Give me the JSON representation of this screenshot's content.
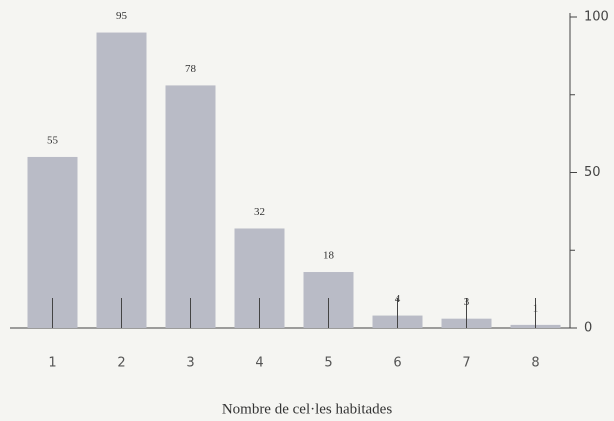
{
  "chart_data": {
    "type": "bar",
    "x_label": "Nombre de cel·les habitades",
    "categories": [
      "1",
      "2",
      "3",
      "4",
      "5",
      "6",
      "7",
      "8"
    ],
    "values": [
      55,
      95,
      78,
      32,
      18,
      4,
      3,
      1
    ],
    "color": "#b9bbc6",
    "ylim": [
      0,
      100
    ],
    "yticks": [
      0,
      50,
      100
    ],
    "yticks_minor": [
      25,
      75
    ],
    "y_axis_side": "right",
    "grid": false
  }
}
